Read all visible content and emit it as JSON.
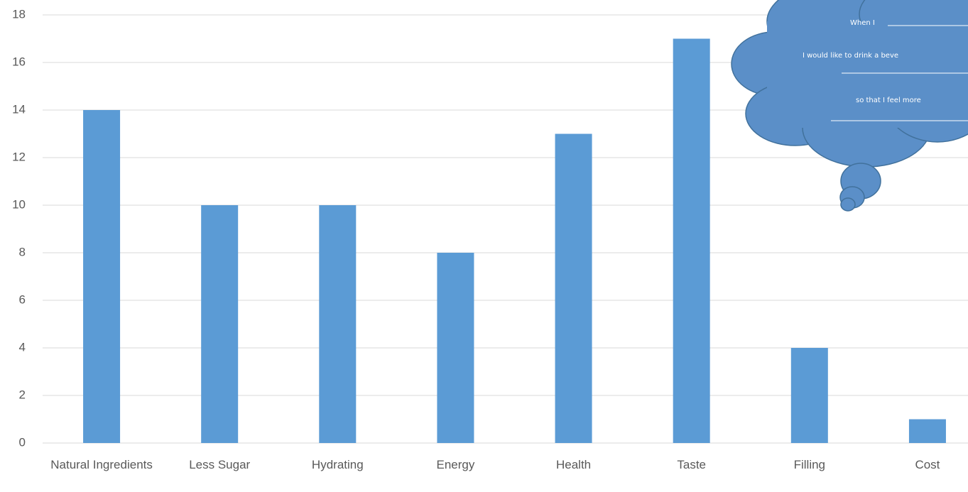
{
  "chart_data": {
    "type": "bar",
    "categories": [
      "Natural Ingredients",
      "Less Sugar",
      "Hydrating",
      "Energy",
      "Health",
      "Taste",
      "Filling",
      "Cost"
    ],
    "values": [
      14,
      10,
      10,
      8,
      13,
      17,
      4,
      1
    ],
    "color": "#5b9bd5",
    "ylim": [
      0,
      18
    ],
    "yticks": [
      0,
      2,
      4,
      6,
      8,
      10,
      12,
      14,
      16,
      18
    ],
    "grid": true,
    "annotations": [
      "When I",
      "I would like to drink a beve",
      "so that I feel more"
    ]
  }
}
